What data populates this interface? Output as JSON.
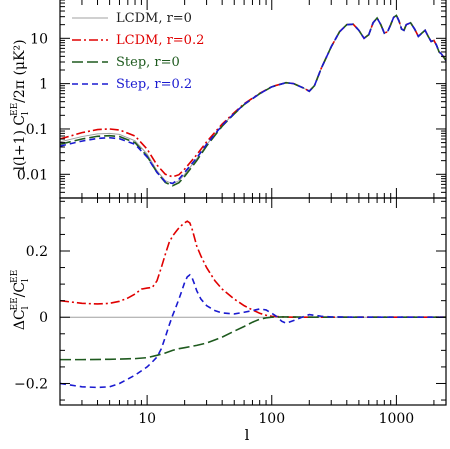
{
  "chart_data": [
    {
      "type": "line",
      "panel": "top",
      "ylabel_main": "l(l+1) C",
      "ylabel_sub": "l",
      "ylabel_sup": "EE",
      "ylabel_rest": "/2π (μK²)",
      "xscale": "log",
      "yscale": "log",
      "xlim": [
        2,
        2500
      ],
      "ylim": [
        0.003,
        70
      ],
      "yticks": [
        {
          "v": 0.01,
          "label": "0.01"
        },
        {
          "v": 0.1,
          "label": "0.1"
        },
        {
          "v": 1,
          "label": "1"
        },
        {
          "v": 10,
          "label": "10"
        }
      ],
      "legend_position": "top-left",
      "series": [
        {
          "name": "LCDM, r=0",
          "color": "#a0a0a0",
          "dash": "solid",
          "x": [
            2,
            3,
            4,
            5,
            6,
            8,
            10,
            12,
            14,
            16,
            18,
            20,
            25,
            30,
            40,
            50,
            60,
            80,
            100,
            130,
            150,
            180,
            200,
            220,
            250,
            300,
            350,
            400,
            450,
            500,
            550,
            600,
            650,
            700,
            750,
            800,
            850,
            900,
            950,
            1000,
            1050,
            1100,
            1150,
            1200,
            1300,
            1400,
            1500,
            1600,
            1700,
            1800,
            1900,
            2000,
            2100,
            2200,
            2300,
            2400,
            2500
          ],
          "y": [
            0.052,
            0.068,
            0.078,
            0.08,
            0.076,
            0.055,
            0.028,
            0.012,
            0.0072,
            0.0062,
            0.0072,
            0.01,
            0.022,
            0.045,
            0.12,
            0.22,
            0.35,
            0.6,
            0.85,
            1.05,
            1.0,
            0.8,
            0.68,
            0.9,
            2.2,
            6.5,
            14,
            20,
            20.5,
            15,
            10,
            12,
            22,
            28,
            20,
            13,
            14,
            20,
            29,
            32,
            24,
            16,
            15,
            20,
            22,
            16,
            11,
            13,
            15,
            11,
            8.5,
            9,
            7,
            5,
            4.5,
            3.8,
            3.2
          ]
        },
        {
          "name": "LCDM, r=0.2",
          "color": "#e00000",
          "dash": "dashdot",
          "x": [
            2,
            3,
            4,
            5,
            6,
            8,
            10,
            12,
            14,
            16,
            18,
            20,
            25,
            30,
            40,
            50,
            60,
            80,
            100,
            130,
            150,
            180,
            200,
            220,
            250,
            300,
            350,
            400,
            450,
            500,
            550,
            600,
            650,
            700,
            750,
            800,
            850,
            900,
            950,
            1000,
            1050,
            1100,
            1150,
            1200,
            1300,
            1400,
            1500,
            1600,
            1700,
            1800,
            1900,
            2000,
            2100,
            2200,
            2300,
            2400,
            2500
          ],
          "y": [
            0.06,
            0.083,
            0.097,
            0.1,
            0.095,
            0.07,
            0.036,
            0.016,
            0.01,
            0.0088,
            0.0098,
            0.013,
            0.027,
            0.052,
            0.128,
            0.23,
            0.36,
            0.61,
            0.86,
            1.05,
            1.0,
            0.8,
            0.68,
            0.9,
            2.2,
            6.5,
            14,
            20,
            20.5,
            15,
            10,
            12,
            22,
            28,
            20,
            13,
            14,
            20,
            29,
            32,
            24,
            16,
            15,
            20,
            22,
            16,
            11,
            13,
            15,
            11,
            8.5,
            9,
            7,
            5,
            4.5,
            3.8,
            3.2
          ]
        },
        {
          "name": "Step, r=0",
          "color": "#1e5a1e",
          "dash": "longdash",
          "x": [
            2,
            3,
            4,
            5,
            6,
            8,
            10,
            12,
            14,
            16,
            18,
            20,
            25,
            30,
            40,
            50,
            60,
            80,
            100,
            130,
            150,
            180,
            200,
            220,
            250,
            300,
            350,
            400,
            450,
            500,
            550,
            600,
            650,
            700,
            750,
            800,
            850,
            900,
            950,
            1000,
            1050,
            1100,
            1150,
            1200,
            1300,
            1400,
            1500,
            1600,
            1700,
            1800,
            1900,
            2000,
            2100,
            2200,
            2300,
            2400,
            2500
          ],
          "y": [
            0.046,
            0.06,
            0.069,
            0.071,
            0.068,
            0.05,
            0.025,
            0.011,
            0.0066,
            0.0056,
            0.0065,
            0.009,
            0.02,
            0.042,
            0.115,
            0.215,
            0.345,
            0.6,
            0.85,
            1.05,
            1.0,
            0.8,
            0.68,
            0.9,
            2.2,
            6.5,
            14,
            20,
            20.5,
            15,
            10,
            12,
            22,
            28,
            20,
            13,
            14,
            20,
            29,
            32,
            24,
            16,
            15,
            20,
            22,
            16,
            11,
            13,
            15,
            11,
            8.5,
            9,
            7,
            5,
            4.5,
            3.8,
            3.2
          ]
        },
        {
          "name": "Step, r=0.2",
          "color": "#1a1ad0",
          "dash": "dashed",
          "x": [
            2,
            3,
            4,
            5,
            6,
            8,
            10,
            12,
            14,
            16,
            18,
            20,
            25,
            30,
            40,
            50,
            60,
            80,
            100,
            130,
            150,
            180,
            200,
            220,
            250,
            300,
            350,
            400,
            450,
            500,
            550,
            600,
            650,
            700,
            750,
            800,
            850,
            900,
            950,
            1000,
            1050,
            1100,
            1150,
            1200,
            1300,
            1400,
            1500,
            1600,
            1700,
            1800,
            1900,
            2000,
            2100,
            2200,
            2300,
            2400,
            2500
          ],
          "y": [
            0.042,
            0.054,
            0.062,
            0.064,
            0.061,
            0.046,
            0.024,
            0.011,
            0.0068,
            0.0063,
            0.0078,
            0.011,
            0.023,
            0.046,
            0.12,
            0.22,
            0.35,
            0.6,
            0.85,
            1.05,
            1.0,
            0.8,
            0.68,
            0.9,
            2.2,
            6.5,
            14,
            20,
            20.5,
            15,
            10,
            12,
            22,
            28,
            20,
            13,
            14,
            20,
            29,
            32,
            24,
            16,
            15,
            20,
            22,
            16,
            11,
            13,
            15,
            11,
            8.5,
            9,
            7,
            5,
            4.5,
            3.8,
            3.2
          ]
        }
      ]
    },
    {
      "type": "line",
      "panel": "bottom",
      "ylabel_main": "ΔC",
      "ylabel_sub": "l",
      "ylabel_sup": "EE",
      "ylabel_div": "/C",
      "ylabel_sub2": "l",
      "ylabel_sup2": "EE",
      "xlabel": "l",
      "xscale": "log",
      "xlim": [
        2,
        2500
      ],
      "ylim": [
        -0.265,
        0.36
      ],
      "yticks": [
        {
          "v": -0.2,
          "label": "−0.2"
        },
        {
          "v": 0,
          "label": "0"
        },
        {
          "v": 0.2,
          "label": "0.2"
        }
      ],
      "xticks": [
        {
          "v": 10,
          "label": "10"
        },
        {
          "v": 100,
          "label": "100"
        },
        {
          "v": 1000,
          "label": "1000"
        }
      ],
      "series": [
        {
          "name": "zero",
          "color": "#a0a0a0",
          "dash": "solid",
          "x": [
            2,
            2500
          ],
          "y": [
            0,
            0
          ]
        },
        {
          "name": "LCDM, r=0.2",
          "color": "#e00000",
          "dash": "dashdot",
          "x": [
            2,
            3,
            4,
            5,
            6,
            7,
            8,
            9,
            10,
            11,
            12,
            13,
            14,
            15,
            16,
            17,
            18,
            19,
            20,
            21,
            22,
            23,
            24,
            25,
            27,
            30,
            35,
            40,
            50,
            60,
            70,
            80,
            90,
            100,
            120,
            150,
            200,
            300,
            500,
            1000,
            2500
          ],
          "y": [
            0.05,
            0.042,
            0.04,
            0.042,
            0.048,
            0.058,
            0.07,
            0.085,
            0.088,
            0.09,
            0.11,
            0.15,
            0.19,
            0.225,
            0.245,
            0.258,
            0.27,
            0.278,
            0.285,
            0.29,
            0.285,
            0.265,
            0.24,
            0.215,
            0.185,
            0.15,
            0.11,
            0.085,
            0.055,
            0.035,
            0.022,
            0.012,
            0.006,
            0.003,
            0.001,
            0.0,
            0.0,
            0.0,
            0.0,
            0.0,
            0.0
          ]
        },
        {
          "name": "Step, r=0",
          "color": "#1e5a1e",
          "dash": "longdash",
          "x": [
            2,
            3,
            5,
            8,
            10,
            12,
            14,
            16,
            18,
            20,
            25,
            30,
            40,
            50,
            60,
            70,
            80,
            90,
            100,
            120,
            150,
            200,
            300,
            500,
            1000,
            2500
          ],
          "y": [
            -0.128,
            -0.128,
            -0.127,
            -0.125,
            -0.122,
            -0.115,
            -0.108,
            -0.1,
            -0.095,
            -0.092,
            -0.085,
            -0.078,
            -0.06,
            -0.042,
            -0.028,
            -0.015,
            -0.006,
            -0.002,
            0.0,
            0.001,
            0.001,
            0.0,
            0.0,
            0.0,
            0.0,
            0.0
          ]
        },
        {
          "name": "Step, r=0.2",
          "color": "#1a1ad0",
          "dash": "dashed",
          "x": [
            2,
            3,
            4,
            5,
            6,
            8,
            10,
            11,
            12,
            13,
            14,
            15,
            16,
            17,
            18,
            19,
            20,
            21,
            22,
            23,
            24,
            25,
            27,
            30,
            35,
            40,
            50,
            60,
            70,
            80,
            90,
            100,
            110,
            120,
            130,
            150,
            180,
            200,
            250,
            300,
            500,
            1000,
            2500
          ],
          "y": [
            -0.2,
            -0.21,
            -0.212,
            -0.21,
            -0.2,
            -0.175,
            -0.15,
            -0.135,
            -0.12,
            -0.095,
            -0.06,
            -0.025,
            0.005,
            0.03,
            0.055,
            0.08,
            0.105,
            0.122,
            0.128,
            0.118,
            0.1,
            0.08,
            0.055,
            0.035,
            0.02,
            0.013,
            0.01,
            0.015,
            0.02,
            0.025,
            0.022,
            0.012,
            0.002,
            -0.012,
            -0.018,
            -0.01,
            0.002,
            0.008,
            0.003,
            0.001,
            0.0,
            0.0,
            0.0
          ]
        }
      ]
    }
  ]
}
